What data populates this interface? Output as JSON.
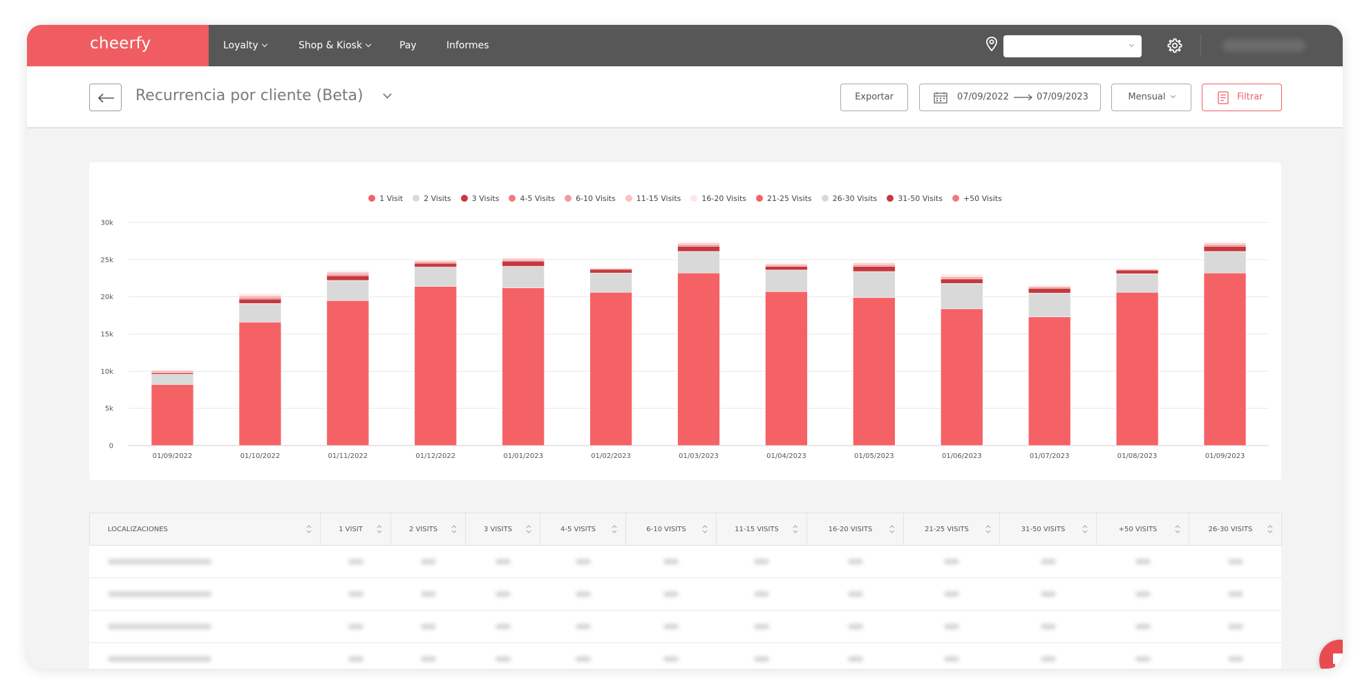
{
  "nav": {
    "brand": "cheerfy",
    "items": [
      {
        "label": "Loyalty",
        "has_menu": true
      },
      {
        "label": "Shop & Kiosk",
        "has_menu": true
      },
      {
        "label": "Pay",
        "has_menu": false
      },
      {
        "label": "Informes",
        "has_menu": false
      }
    ],
    "location_select_value": "",
    "user_name": ""
  },
  "header": {
    "title": "Recurrencia por cliente (Beta)",
    "export_label": "Exportar",
    "date_from": "07/09/2022",
    "date_to": "07/09/2023",
    "period_label": "Mensual",
    "filter_label": "Filtrar"
  },
  "colors": {
    "brand": "#ef5d62",
    "topbar": "#575757",
    "series": [
      "#f56266",
      "#d9d9d9",
      "#c6393e",
      "#f07a7d",
      "#f59a9c",
      "#f8c2c3",
      "#fde6e6",
      "#f56266",
      "#d9d9d9",
      "#c6393e",
      "#f07a7d"
    ]
  },
  "chart_data": {
    "type": "bar",
    "stacked": true,
    "categories": [
      "01/09/2022",
      "01/10/2022",
      "01/11/2022",
      "01/12/2022",
      "01/01/2023",
      "01/02/2023",
      "01/03/2023",
      "01/04/2023",
      "01/05/2023",
      "01/06/2023",
      "01/07/2023",
      "01/08/2023",
      "01/09/2023"
    ],
    "ylim": [
      0,
      30000
    ],
    "yticks": [
      "0",
      "5k",
      "10k",
      "15k",
      "20k",
      "25k",
      "30k"
    ],
    "legend_position": "top",
    "grid": true,
    "series": [
      {
        "name": "1 Visit",
        "values": [
          8200,
          16600,
          19500,
          21400,
          21200,
          20600,
          23200,
          20700,
          19900,
          18400,
          17300,
          20600,
          23200
        ]
      },
      {
        "name": "2 Visits",
        "values": [
          1400,
          2500,
          2700,
          2600,
          2900,
          2600,
          2900,
          2900,
          3500,
          3400,
          3200,
          2500,
          2900
        ]
      },
      {
        "name": "3 Visits",
        "values": [
          200,
          600,
          650,
          500,
          700,
          500,
          700,
          500,
          700,
          600,
          650,
          500,
          700
        ]
      },
      {
        "name": "4-5 Visits",
        "values": [
          130,
          200,
          180,
          150,
          150,
          100,
          160,
          140,
          160,
          160,
          130,
          100,
          160
        ]
      },
      {
        "name": "6-10 Visits",
        "values": [
          120,
          180,
          170,
          140,
          140,
          90,
          150,
          130,
          150,
          150,
          120,
          90,
          150
        ]
      },
      {
        "name": "11-15 Visits",
        "values": [
          100,
          150,
          140,
          120,
          120,
          80,
          130,
          110,
          130,
          130,
          100,
          80,
          130
        ]
      },
      {
        "name": "16-20 Visits",
        "values": [
          80,
          100,
          100,
          90,
          90,
          60,
          100,
          80,
          100,
          100,
          80,
          60,
          100
        ]
      },
      {
        "name": "21-25 Visits",
        "values": [
          60,
          70,
          70,
          60,
          60,
          50,
          70,
          60,
          70,
          70,
          60,
          50,
          70
        ]
      },
      {
        "name": "26-30 Visits",
        "values": [
          40,
          50,
          50,
          40,
          40,
          30,
          50,
          40,
          50,
          50,
          40,
          30,
          50
        ]
      },
      {
        "name": "31-50 Visits",
        "values": [
          40,
          50,
          50,
          40,
          40,
          30,
          50,
          40,
          50,
          50,
          40,
          30,
          50
        ]
      },
      {
        "name": "+50 Visits",
        "values": [
          30,
          40,
          40,
          30,
          30,
          20,
          40,
          30,
          40,
          40,
          30,
          20,
          40
        ]
      }
    ]
  },
  "table": {
    "columns": [
      "LOCALIZACIONES",
      "1 VISIT",
      "2 VISITS",
      "3 VISITS",
      "4-5 VISITS",
      "6-10 VISITS",
      "11-15 VISITS",
      "16-20 VISITS",
      "21-25 VISITS",
      "31-50 VISITS",
      "+50 VISITS",
      "26-30 VISITS"
    ],
    "rows": [
      [
        "",
        "",
        "",
        "",
        "",
        "",
        "",
        "",
        "",
        "",
        "",
        ""
      ],
      [
        "",
        "",
        "",
        "",
        "",
        "",
        "",
        "",
        "",
        "",
        "",
        ""
      ],
      [
        "",
        "",
        "",
        "",
        "",
        "",
        "",
        "",
        "",
        "",
        "",
        ""
      ],
      [
        "",
        "",
        "",
        "",
        "",
        "",
        "",
        "",
        "",
        "",
        "",
        ""
      ]
    ]
  }
}
